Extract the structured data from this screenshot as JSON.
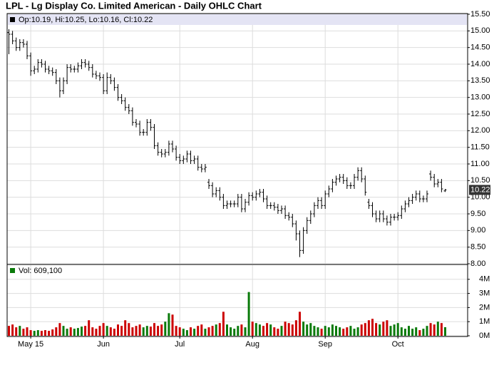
{
  "chart_data": {
    "type": "ohlc",
    "title": "LPL - Lg Display Co. Limited American - Daily OHLC Chart",
    "legend_text": "Op:10.19, Hi:10.25, Lo:10.16, Cl:10.22",
    "volume_legend": "Vol: 609,100",
    "categories": [
      null,
      null,
      null,
      null,
      null,
      null,
      "May 15",
      null,
      null,
      null,
      null,
      null,
      null,
      null,
      null,
      null,
      null,
      null,
      null,
      null,
      null,
      null,
      null,
      null,
      null,
      null,
      "Jun",
      null,
      null,
      null,
      null,
      null,
      null,
      null,
      null,
      null,
      null,
      null,
      null,
      null,
      null,
      null,
      null,
      null,
      null,
      null,
      null,
      "Jul",
      null,
      null,
      null,
      null,
      null,
      null,
      null,
      null,
      null,
      null,
      null,
      null,
      null,
      null,
      null,
      null,
      null,
      null,
      null,
      "Aug",
      null,
      null,
      null,
      null,
      null,
      null,
      null,
      null,
      null,
      null,
      null,
      null,
      null,
      null,
      null,
      null,
      null,
      null,
      null,
      "Sep",
      null,
      null,
      null,
      null,
      null,
      null,
      null,
      null,
      null,
      null,
      null,
      null,
      null,
      null,
      null,
      null,
      null,
      null,
      null,
      "Oct",
      null,
      null,
      null,
      null,
      null,
      null,
      null,
      null,
      null,
      null,
      null,
      null,
      null
    ],
    "open": [
      14.95,
      14.9,
      14.7,
      14.5,
      14.65,
      14.6,
      14.25,
      13.8,
      13.85,
      14.05,
      14.0,
      13.85,
      13.8,
      13.75,
      13.5,
      13.2,
      13.5,
      13.9,
      13.85,
      13.85,
      13.95,
      14.05,
      14.0,
      13.9,
      13.7,
      13.65,
      13.6,
      13.2,
      13.6,
      13.5,
      13.3,
      13.0,
      12.9,
      12.7,
      12.6,
      12.25,
      12.2,
      11.95,
      11.95,
      12.25,
      12.1,
      11.55,
      11.35,
      11.3,
      11.35,
      11.6,
      11.45,
      11.2,
      11.1,
      11.15,
      11.3,
      11.1,
      11.15,
      10.9,
      10.85,
      10.45,
      10.35,
      10.1,
      10.2,
      10.0,
      9.75,
      9.8,
      9.8,
      9.8,
      10.0,
      9.65,
      9.85,
      10.05,
      10.0,
      10.1,
      10.15,
      9.95,
      9.75,
      9.75,
      9.7,
      9.6,
      9.65,
      9.45,
      9.4,
      9.2,
      8.9,
      8.4,
      9.0,
      9.3,
      9.5,
      9.75,
      9.9,
      9.75,
      10.1,
      10.25,
      10.45,
      10.55,
      10.6,
      10.5,
      10.35,
      10.35,
      10.6,
      10.8,
      10.55,
      9.85,
      9.75,
      9.5,
      9.35,
      9.5,
      9.35,
      9.25,
      9.4,
      9.4,
      9.45,
      9.65,
      9.8,
      9.9,
      10.0,
      10.1,
      9.95,
      9.95,
      10.7,
      10.6,
      10.4,
      10.45,
      10.19
    ],
    "high": [
      15.05,
      15.0,
      14.8,
      14.75,
      14.75,
      14.7,
      14.35,
      13.95,
      14.15,
      14.15,
      14.1,
      13.95,
      13.9,
      13.85,
      13.6,
      13.6,
      14.0,
      14.0,
      13.95,
      14.05,
      14.15,
      14.15,
      14.1,
      14.0,
      13.8,
      13.75,
      13.7,
      13.75,
      13.7,
      13.6,
      13.4,
      13.1,
      13.0,
      12.8,
      12.7,
      12.35,
      12.3,
      12.05,
      12.35,
      12.35,
      12.2,
      11.65,
      11.45,
      11.45,
      11.7,
      11.7,
      11.55,
      11.3,
      11.25,
      11.4,
      11.4,
      11.25,
      11.25,
      11.0,
      11.0,
      10.55,
      10.45,
      10.3,
      10.3,
      10.1,
      9.9,
      9.9,
      9.9,
      10.1,
      10.1,
      9.95,
      10.15,
      10.15,
      10.2,
      10.25,
      10.25,
      10.05,
      9.85,
      9.85,
      9.8,
      9.75,
      9.75,
      9.55,
      9.5,
      9.3,
      9.0,
      9.1,
      9.4,
      9.6,
      9.85,
      10.0,
      10.0,
      10.2,
      10.35,
      10.55,
      10.65,
      10.7,
      10.7,
      10.6,
      10.45,
      10.7,
      10.9,
      10.9,
      10.65,
      9.95,
      9.85,
      9.6,
      9.6,
      9.6,
      9.45,
      9.5,
      9.5,
      9.55,
      9.75,
      9.9,
      10.0,
      10.1,
      10.2,
      10.2,
      10.05,
      10.2,
      10.8,
      10.7,
      10.55,
      10.55,
      10.25
    ],
    "low": [
      14.3,
      14.6,
      14.4,
      14.4,
      14.5,
      14.15,
      13.65,
      13.7,
      13.75,
      13.9,
      13.75,
      13.7,
      13.65,
      13.4,
      13.0,
      13.1,
      13.4,
      13.75,
      13.75,
      13.75,
      13.85,
      13.9,
      13.8,
      13.6,
      13.55,
      13.5,
      13.1,
      13.1,
      13.4,
      13.2,
      12.9,
      12.8,
      12.6,
      12.5,
      12.15,
      12.1,
      11.85,
      11.85,
      11.85,
      12.0,
      11.45,
      11.25,
      11.2,
      11.2,
      11.25,
      11.35,
      11.1,
      11.0,
      11.0,
      11.05,
      11.0,
      11.0,
      10.8,
      10.75,
      10.75,
      10.25,
      10.0,
      10.0,
      9.9,
      9.65,
      9.65,
      9.7,
      9.7,
      9.7,
      9.55,
      9.55,
      9.75,
      9.9,
      9.9,
      10.0,
      9.85,
      9.65,
      9.65,
      9.6,
      9.5,
      9.5,
      9.35,
      9.3,
      9.1,
      8.7,
      8.2,
      8.3,
      8.9,
      9.2,
      9.4,
      9.65,
      9.65,
      9.65,
      10.0,
      10.15,
      10.35,
      10.45,
      10.4,
      10.25,
      10.25,
      10.25,
      10.5,
      10.45,
      10.05,
      9.65,
      9.4,
      9.25,
      9.25,
      9.25,
      9.15,
      9.15,
      9.3,
      9.3,
      9.35,
      9.55,
      9.7,
      9.8,
      9.9,
      9.85,
      9.85,
      9.85,
      10.5,
      10.3,
      10.3,
      10.15,
      10.16
    ],
    "close": [
      14.9,
      14.7,
      14.5,
      14.65,
      14.6,
      14.25,
      13.8,
      13.85,
      14.05,
      14.0,
      13.85,
      13.8,
      13.75,
      13.5,
      13.2,
      13.5,
      13.9,
      13.85,
      13.85,
      13.95,
      14.05,
      14.0,
      13.9,
      13.7,
      13.65,
      13.6,
      13.2,
      13.6,
      13.5,
      13.3,
      13.0,
      12.9,
      12.7,
      12.6,
      12.25,
      12.2,
      11.95,
      11.95,
      12.25,
      12.1,
      11.55,
      11.35,
      11.3,
      11.35,
      11.6,
      11.45,
      11.2,
      11.1,
      11.15,
      11.3,
      11.1,
      11.15,
      10.9,
      10.85,
      10.9,
      10.35,
      10.1,
      10.2,
      10.0,
      9.75,
      9.8,
      9.8,
      9.8,
      10.0,
      9.65,
      9.85,
      10.05,
      10.0,
      10.1,
      10.15,
      9.95,
      9.75,
      9.75,
      9.7,
      9.6,
      9.65,
      9.45,
      9.4,
      9.2,
      8.9,
      8.4,
      9.0,
      9.3,
      9.5,
      9.75,
      9.9,
      9.75,
      10.1,
      10.25,
      10.45,
      10.55,
      10.6,
      10.5,
      10.35,
      10.35,
      10.6,
      10.8,
      10.55,
      10.15,
      9.75,
      9.5,
      9.35,
      9.5,
      9.35,
      9.25,
      9.4,
      9.4,
      9.45,
      9.65,
      9.8,
      9.9,
      10.0,
      10.1,
      9.95,
      9.95,
      10.1,
      10.6,
      10.4,
      10.45,
      10.25,
      10.22
    ],
    "volume": [
      0.7,
      0.8,
      0.6,
      0.7,
      0.5,
      0.6,
      0.4,
      0.35,
      0.4,
      0.35,
      0.4,
      0.35,
      0.45,
      0.6,
      0.9,
      0.7,
      0.5,
      0.6,
      0.5,
      0.55,
      0.65,
      0.7,
      1.1,
      0.6,
      0.5,
      0.7,
      0.9,
      0.7,
      0.6,
      0.5,
      0.8,
      0.7,
      1.1,
      0.9,
      0.6,
      0.7,
      0.8,
      0.6,
      0.7,
      0.65,
      0.9,
      0.7,
      0.8,
      1.0,
      1.6,
      1.5,
      0.7,
      0.6,
      0.5,
      0.4,
      0.6,
      0.5,
      0.7,
      0.8,
      0.5,
      0.6,
      0.7,
      0.8,
      0.9,
      1.7,
      0.8,
      0.6,
      0.5,
      0.7,
      0.8,
      0.6,
      3.1,
      1.0,
      0.9,
      0.8,
      0.7,
      0.9,
      0.8,
      0.6,
      0.5,
      0.7,
      1.0,
      0.9,
      0.8,
      1.1,
      1.7,
      1.0,
      0.8,
      0.9,
      0.7,
      0.6,
      0.5,
      0.7,
      0.6,
      0.8,
      0.7,
      0.6,
      0.5,
      0.6,
      0.7,
      0.5,
      0.6,
      0.8,
      0.9,
      1.1,
      1.2,
      0.9,
      0.8,
      1.0,
      1.1,
      0.7,
      0.8,
      0.9,
      0.6,
      0.5,
      0.7,
      0.5,
      0.6,
      0.4,
      0.5,
      0.7,
      0.9,
      0.8,
      1.0,
      0.9,
      0.6091
    ],
    "ylim": [
      8,
      15.5
    ],
    "yticks": [
      {
        "value": 8,
        "label": "8.00"
      },
      {
        "value": 8.5,
        "label": "8.50"
      },
      {
        "value": 9,
        "label": "9.00"
      },
      {
        "value": 9.5,
        "label": "9.50"
      },
      {
        "value": 10,
        "label": "10.00"
      },
      {
        "value": 10.5,
        "label": "10.50"
      },
      {
        "value": 11,
        "label": "11.00"
      },
      {
        "value": 11.5,
        "label": "11.50"
      },
      {
        "value": 12,
        "label": "12.00"
      },
      {
        "value": 12.5,
        "label": "12.50"
      },
      {
        "value": 13,
        "label": "13.00"
      },
      {
        "value": 13.5,
        "label": "13.50"
      },
      {
        "value": 14,
        "label": "14.00"
      },
      {
        "value": 14.5,
        "label": "14.50"
      },
      {
        "value": 15,
        "label": "15.00"
      },
      {
        "value": 15.5,
        "label": "15.50"
      }
    ],
    "volume_ylim": [
      0,
      5
    ],
    "volume_yticks": [
      {
        "value": 0,
        "label": "0M"
      },
      {
        "value": 1,
        "label": "1M"
      },
      {
        "value": 2,
        "label": "2M"
      },
      {
        "value": 3,
        "label": "3M"
      },
      {
        "value": 4,
        "label": "4M"
      }
    ],
    "bar_color": "#000000",
    "up_color": "#0a7a0a",
    "down_color": "#cc0000",
    "grid": true
  }
}
